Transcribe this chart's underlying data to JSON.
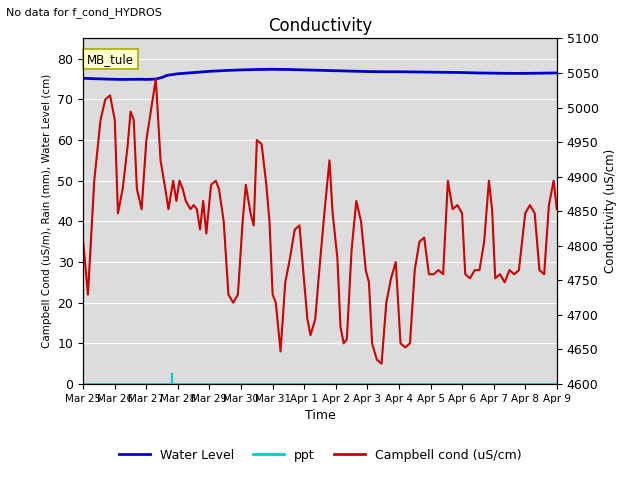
{
  "title": "Conductivity",
  "subtitle": "No data for f_cond_HYDROS",
  "xlabel": "Time",
  "ylabel_left": "Campbell Cond (uS/m), Rain (mm), Water Level (cm)",
  "ylabel_right": "Conductivity (uS/cm)",
  "site_label": "MB_tule",
  "ylim_left": [
    0,
    85
  ],
  "ylim_right": [
    4600,
    5100
  ],
  "background_color": "#dcdcdc",
  "legend_items": [
    "Water Level",
    "ppt",
    "Campbell cond (uS/cm)"
  ],
  "water_level_color": "#0000cc",
  "ppt_color": "#00cccc",
  "campbell_color": "#cc0000",
  "water_level_lw": 2.0,
  "campbell_lw": 1.5,
  "x_tick_labels": [
    "Mar 25",
    "Mar 26",
    "Mar 27",
    "Mar 28",
    "Mar 29",
    "Mar 30",
    "Mar 31",
    "Apr 1",
    "Apr 2",
    "Apr 3",
    "Apr 4",
    "Apr 5",
    "Apr 6",
    "Apr 7",
    "Apr 8",
    "Apr 9"
  ],
  "water_level_data": [
    [
      0.0,
      75.2
    ],
    [
      0.3,
      75.1
    ],
    [
      0.7,
      75.0
    ],
    [
      1.2,
      74.9
    ],
    [
      1.8,
      74.95
    ],
    [
      2.0,
      74.9
    ],
    [
      2.3,
      75.0
    ],
    [
      2.5,
      75.4
    ],
    [
      2.65,
      75.9
    ],
    [
      3.0,
      76.3
    ],
    [
      3.5,
      76.6
    ],
    [
      4.0,
      76.9
    ],
    [
      4.5,
      77.1
    ],
    [
      5.0,
      77.25
    ],
    [
      5.5,
      77.35
    ],
    [
      6.0,
      77.4
    ],
    [
      6.5,
      77.35
    ],
    [
      7.0,
      77.25
    ],
    [
      7.5,
      77.15
    ],
    [
      8.0,
      77.05
    ],
    [
      8.5,
      76.95
    ],
    [
      9.0,
      76.85
    ],
    [
      9.5,
      76.8
    ],
    [
      10.0,
      76.8
    ],
    [
      10.5,
      76.75
    ],
    [
      11.0,
      76.7
    ],
    [
      11.5,
      76.65
    ],
    [
      12.0,
      76.6
    ],
    [
      12.5,
      76.5
    ],
    [
      13.0,
      76.45
    ],
    [
      13.5,
      76.4
    ],
    [
      14.0,
      76.4
    ],
    [
      14.5,
      76.45
    ],
    [
      15.0,
      76.5
    ]
  ],
  "ppt_data": [
    [
      2.8,
      2.5
    ]
  ],
  "campbell_data": [
    [
      0.0,
      35
    ],
    [
      0.15,
      22
    ],
    [
      0.35,
      50
    ],
    [
      0.55,
      65
    ],
    [
      0.7,
      70
    ],
    [
      0.85,
      71
    ],
    [
      1.0,
      65
    ],
    [
      1.1,
      42
    ],
    [
      1.25,
      48
    ],
    [
      1.4,
      58
    ],
    [
      1.5,
      67
    ],
    [
      1.6,
      65
    ],
    [
      1.7,
      48
    ],
    [
      1.85,
      43
    ],
    [
      2.0,
      60
    ],
    [
      2.1,
      65
    ],
    [
      2.2,
      70
    ],
    [
      2.3,
      75
    ],
    [
      2.45,
      55
    ],
    [
      2.6,
      48
    ],
    [
      2.7,
      43
    ],
    [
      2.85,
      50
    ],
    [
      2.95,
      45
    ],
    [
      3.05,
      50
    ],
    [
      3.15,
      48
    ],
    [
      3.25,
      45
    ],
    [
      3.4,
      43
    ],
    [
      3.5,
      44
    ],
    [
      3.6,
      43
    ],
    [
      3.7,
      38
    ],
    [
      3.8,
      45
    ],
    [
      3.9,
      37
    ],
    [
      4.05,
      49
    ],
    [
      4.2,
      50
    ],
    [
      4.3,
      48
    ],
    [
      4.45,
      40
    ],
    [
      4.6,
      22
    ],
    [
      4.75,
      20
    ],
    [
      4.9,
      22
    ],
    [
      5.05,
      40
    ],
    [
      5.15,
      49
    ],
    [
      5.3,
      42
    ],
    [
      5.4,
      39
    ],
    [
      5.5,
      60
    ],
    [
      5.65,
      59
    ],
    [
      5.8,
      49
    ],
    [
      5.9,
      40
    ],
    [
      6.0,
      22
    ],
    [
      6.1,
      20
    ],
    [
      6.25,
      8
    ],
    [
      6.4,
      25
    ],
    [
      6.55,
      31
    ],
    [
      6.7,
      38
    ],
    [
      6.85,
      39
    ],
    [
      7.0,
      25
    ],
    [
      7.1,
      16
    ],
    [
      7.2,
      12
    ],
    [
      7.35,
      16
    ],
    [
      7.5,
      30
    ],
    [
      7.65,
      43
    ],
    [
      7.8,
      55
    ],
    [
      7.9,
      42
    ],
    [
      8.05,
      31
    ],
    [
      8.15,
      14
    ],
    [
      8.25,
      10
    ],
    [
      8.35,
      11
    ],
    [
      8.5,
      33
    ],
    [
      8.65,
      45
    ],
    [
      8.8,
      40
    ],
    [
      8.95,
      28
    ],
    [
      9.05,
      25
    ],
    [
      9.15,
      10
    ],
    [
      9.3,
      6
    ],
    [
      9.45,
      5
    ],
    [
      9.6,
      20
    ],
    [
      9.75,
      26
    ],
    [
      9.9,
      30
    ],
    [
      10.05,
      10
    ],
    [
      10.2,
      9
    ],
    [
      10.35,
      10
    ],
    [
      10.5,
      28
    ],
    [
      10.65,
      35
    ],
    [
      10.8,
      36
    ],
    [
      10.95,
      27
    ],
    [
      11.1,
      27
    ],
    [
      11.25,
      28
    ],
    [
      11.4,
      27
    ],
    [
      11.55,
      50
    ],
    [
      11.7,
      43
    ],
    [
      11.85,
      44
    ],
    [
      12.0,
      42
    ],
    [
      12.1,
      27
    ],
    [
      12.25,
      26
    ],
    [
      12.4,
      28
    ],
    [
      12.55,
      28
    ],
    [
      12.7,
      35
    ],
    [
      12.85,
      50
    ],
    [
      12.95,
      43
    ],
    [
      13.05,
      26
    ],
    [
      13.2,
      27
    ],
    [
      13.35,
      25
    ],
    [
      13.5,
      28
    ],
    [
      13.65,
      27
    ],
    [
      13.8,
      28
    ],
    [
      14.0,
      42
    ],
    [
      14.15,
      44
    ],
    [
      14.3,
      42
    ],
    [
      14.45,
      28
    ],
    [
      14.6,
      27
    ],
    [
      14.75,
      44
    ],
    [
      14.9,
      50
    ],
    [
      15.0,
      43
    ]
  ]
}
